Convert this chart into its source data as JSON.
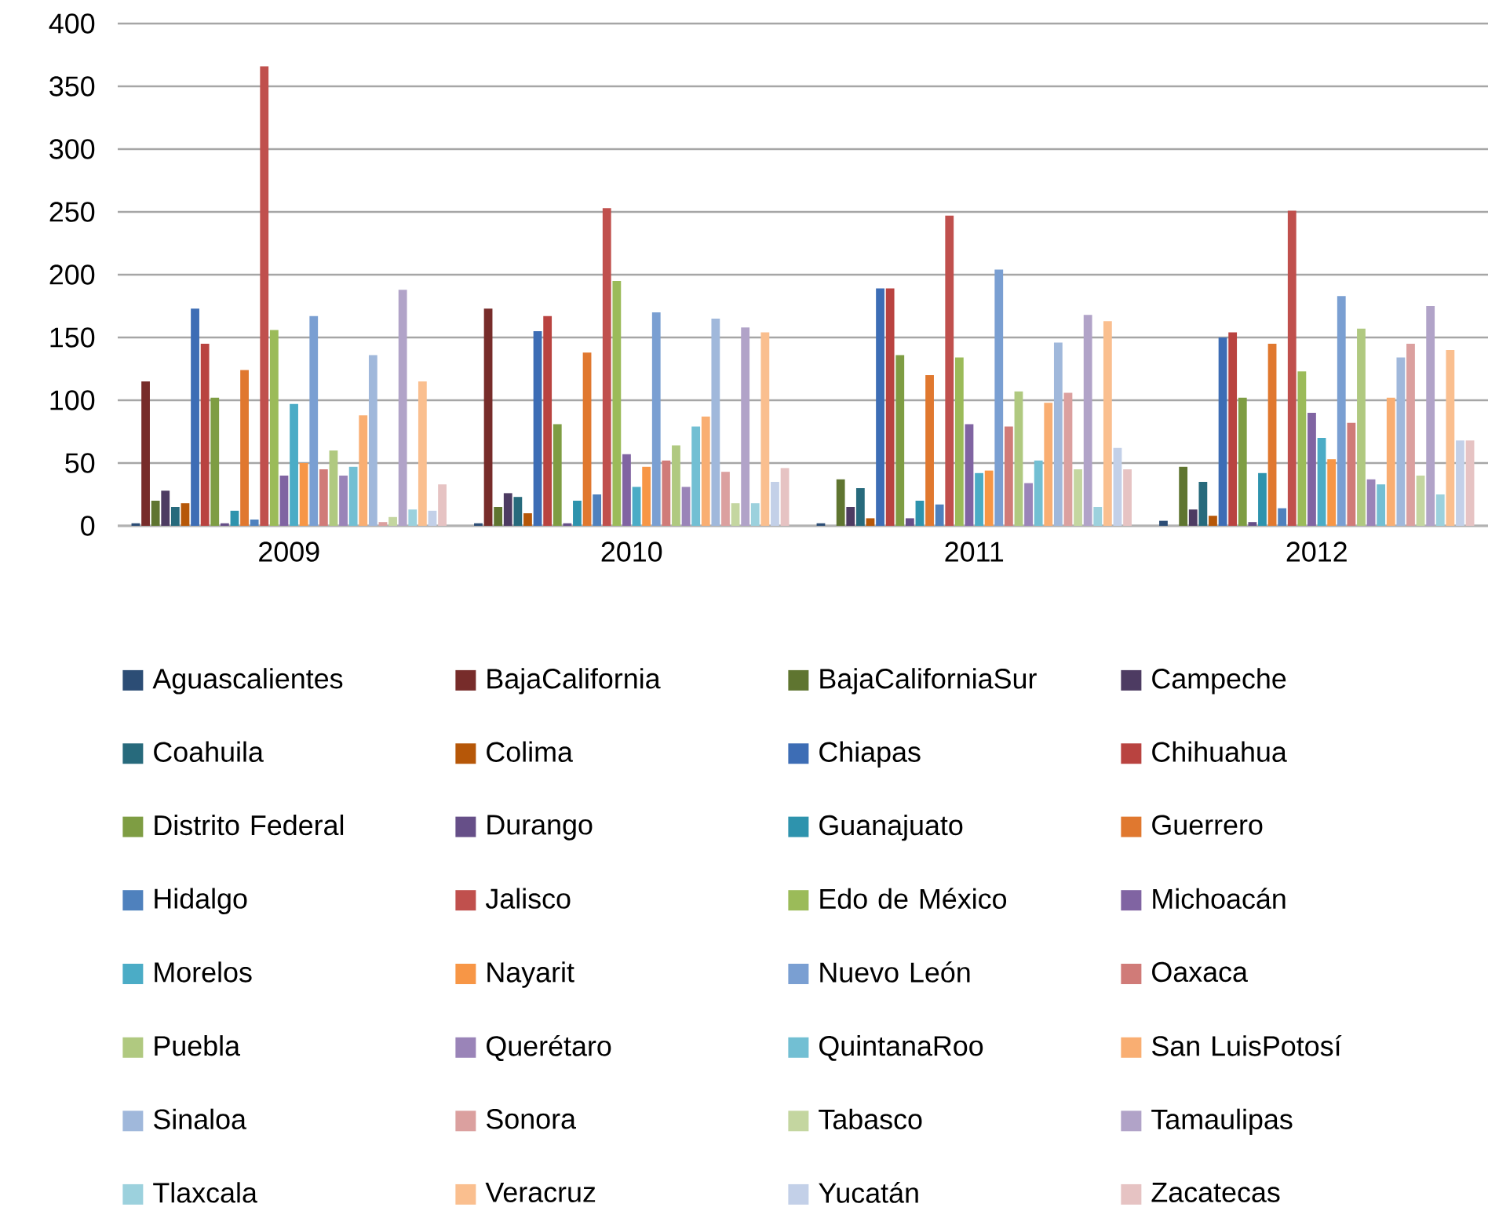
{
  "chart_data": {
    "type": "bar",
    "categories": [
      "2009",
      "2010",
      "2011",
      "2012"
    ],
    "ylim": [
      0,
      400
    ],
    "yticks": [
      0,
      50,
      100,
      150,
      200,
      250,
      300,
      350,
      400
    ],
    "grid": "y",
    "legend": "bottom",
    "series": [
      {
        "name": "Aguascalientes",
        "color": "#2c4d75",
        "values": [
          2,
          2,
          2,
          4
        ]
      },
      {
        "name": "BajaCalifornia",
        "color": "#772c2a",
        "values": [
          115,
          173,
          0,
          0
        ]
      },
      {
        "name": "BajaCaliforniaSur",
        "color": "#5f7530",
        "values": [
          20,
          15,
          37,
          47
        ]
      },
      {
        "name": "Campeche",
        "color": "#4d3b62",
        "values": [
          28,
          26,
          15,
          13
        ]
      },
      {
        "name": "Coahuila",
        "color": "#276a7c",
        "values": [
          15,
          23,
          30,
          35
        ]
      },
      {
        "name": "Colima",
        "color": "#b65708",
        "values": [
          18,
          10,
          6,
          8
        ]
      },
      {
        "name": "Chiapas",
        "color": "#3d6db5",
        "values": [
          173,
          155,
          189,
          150
        ]
      },
      {
        "name": "Chihuahua",
        "color": "#b94340",
        "values": [
          145,
          167,
          189,
          154
        ]
      },
      {
        "name": "Distrito Federal",
        "color": "#7e9d43",
        "values": [
          102,
          81,
          136,
          102
        ]
      },
      {
        "name": "Durango",
        "color": "#664f88",
        "values": [
          2,
          2,
          6,
          3
        ]
      },
      {
        "name": "Guanajuato",
        "color": "#2e93ad",
        "values": [
          12,
          20,
          20,
          42
        ]
      },
      {
        "name": "Guerrero",
        "color": "#e0782f",
        "values": [
          124,
          138,
          120,
          145
        ]
      },
      {
        "name": "Hidalgo",
        "color": "#4f81bd",
        "values": [
          5,
          25,
          17,
          14
        ]
      },
      {
        "name": "Jalisco",
        "color": "#c0504d",
        "values": [
          366,
          253,
          247,
          251
        ]
      },
      {
        "name": "Edo de México",
        "color": "#9bbb59",
        "values": [
          156,
          195,
          134,
          123
        ]
      },
      {
        "name": "Michoacán",
        "color": "#8064a2",
        "values": [
          40,
          57,
          81,
          90
        ]
      },
      {
        "name": "Morelos",
        "color": "#4bacc6",
        "values": [
          97,
          31,
          42,
          70
        ]
      },
      {
        "name": "Nayarit",
        "color": "#f79646",
        "values": [
          50,
          47,
          44,
          53
        ]
      },
      {
        "name": "Nuevo León",
        "color": "#7a9fd2",
        "values": [
          167,
          170,
          204,
          183
        ]
      },
      {
        "name": "Oaxaca",
        "color": "#d07b78",
        "values": [
          45,
          52,
          79,
          82
        ]
      },
      {
        "name": "Puebla",
        "color": "#b0c980",
        "values": [
          60,
          64,
          107,
          157
        ]
      },
      {
        "name": "Querétaro",
        "color": "#9a84b8",
        "values": [
          40,
          31,
          34,
          37
        ]
      },
      {
        "name": "QuintanaRoo",
        "color": "#72bfd3",
        "values": [
          47,
          79,
          52,
          33
        ]
      },
      {
        "name": "San LuisPotosí",
        "color": "#f9ae72",
        "values": [
          88,
          87,
          98,
          102
        ]
      },
      {
        "name": "Sinaloa",
        "color": "#a0b8db",
        "values": [
          136,
          165,
          146,
          134
        ]
      },
      {
        "name": "Sonora",
        "color": "#dba09f",
        "values": [
          3,
          43,
          106,
          145
        ]
      },
      {
        "name": "Tabasco",
        "color": "#c4d6a0",
        "values": [
          7,
          18,
          45,
          40
        ]
      },
      {
        "name": "Tamaulipas",
        "color": "#b1a3c8",
        "values": [
          188,
          158,
          168,
          175
        ]
      },
      {
        "name": "Tlaxcala",
        "color": "#9cd1dd",
        "values": [
          13,
          18,
          15,
          25
        ]
      },
      {
        "name": "Veracruz",
        "color": "#fabf8f",
        "values": [
          115,
          154,
          163,
          140
        ]
      },
      {
        "name": "Yucatán",
        "color": "#c3d0e8",
        "values": [
          12,
          35,
          62,
          68
        ]
      },
      {
        "name": "Zacatecas",
        "color": "#e6c3c3",
        "values": [
          33,
          46,
          45,
          68
        ]
      }
    ]
  }
}
